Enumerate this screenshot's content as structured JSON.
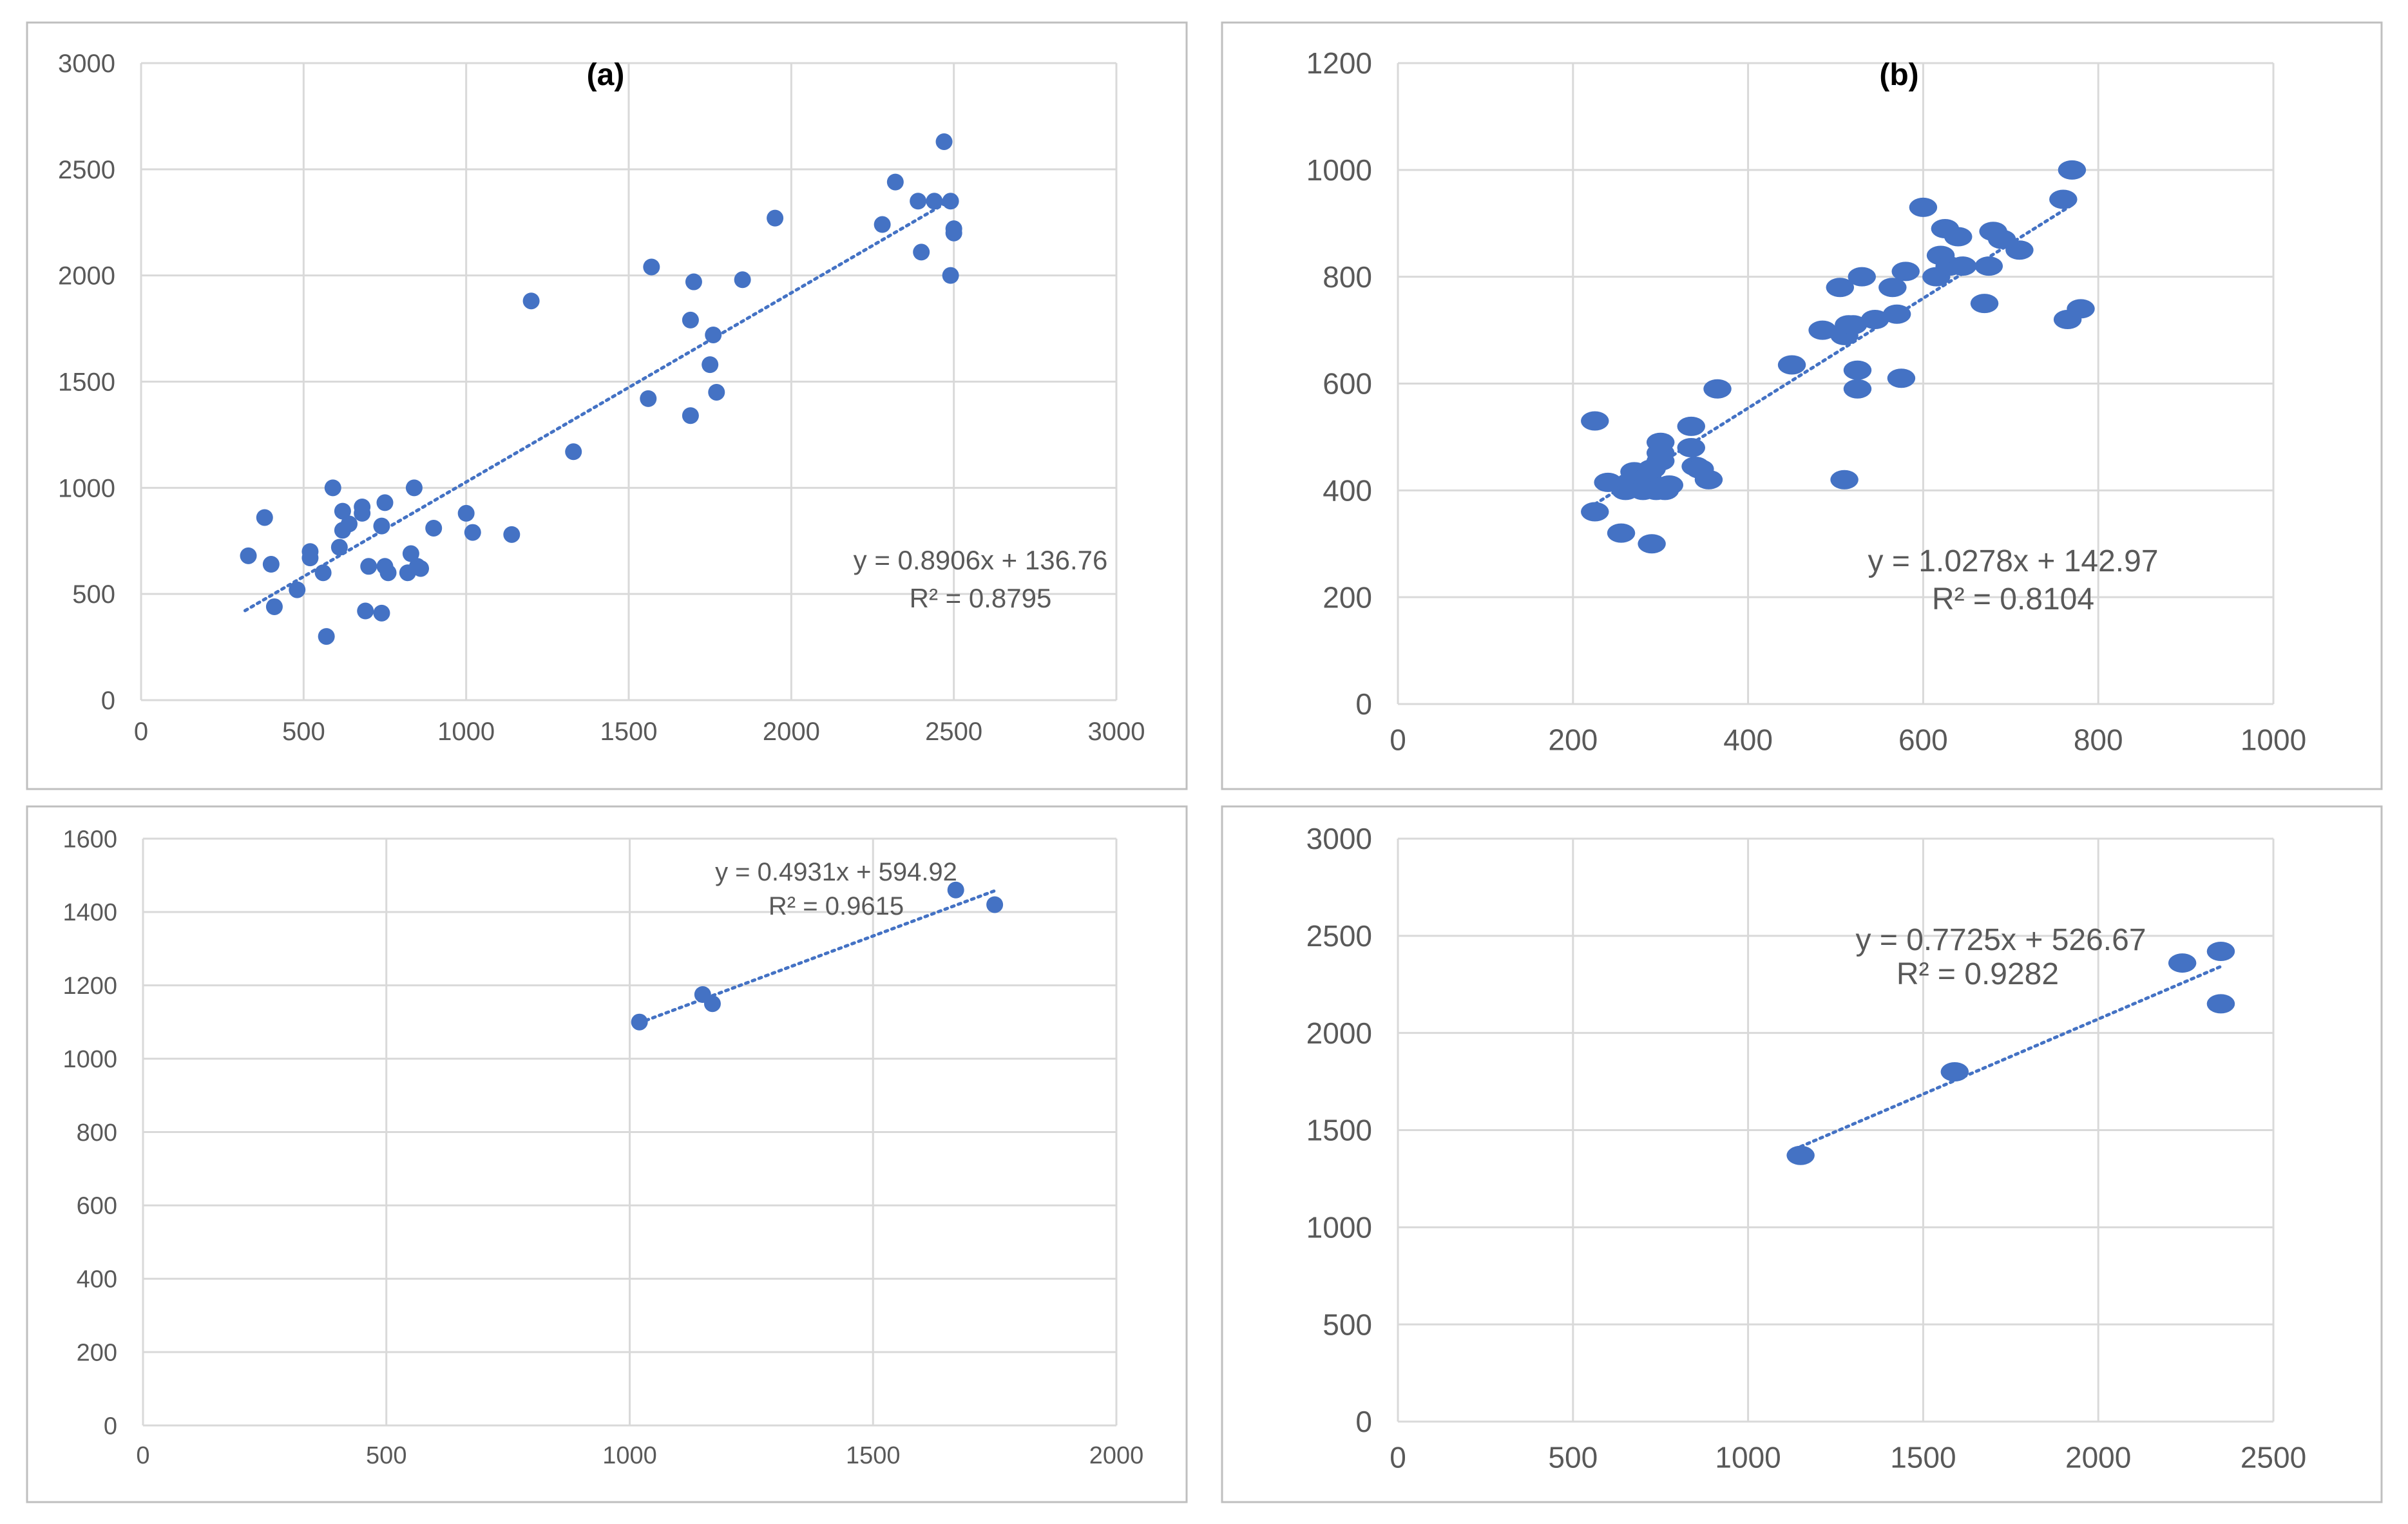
{
  "colors": {
    "marker": "#4472C4",
    "grid": "#d9d9d9",
    "axis_text": "#595959",
    "frame": "#bfbfbf",
    "trendline": "#4472C4"
  },
  "chart_data": [
    {
      "type": "scatter",
      "title": "(a)",
      "xlim": [
        0,
        3000
      ],
      "ylim": [
        0,
        3000
      ],
      "xticks": [
        "0",
        "500",
        "1000",
        "1500",
        "2000",
        "2500",
        "3000"
      ],
      "yticks": [
        "0",
        "500",
        "1000",
        "1500",
        "2000",
        "2500",
        "3000"
      ],
      "xtick_values": [
        0,
        500,
        1000,
        1500,
        2000,
        2500,
        3000
      ],
      "ytick_values": [
        0,
        500,
        1000,
        1500,
        2000,
        2500,
        3000
      ],
      "series": [
        {
          "name": "points",
          "x": [
            330,
            380,
            400,
            410,
            480,
            520,
            520,
            560,
            570,
            590,
            610,
            620,
            620,
            640,
            680,
            680,
            690,
            700,
            740,
            740,
            750,
            750,
            760,
            820,
            830,
            840,
            850,
            860,
            900,
            1000,
            1020,
            1140,
            1200,
            1330,
            1560,
            1570,
            1690,
            1690,
            1700,
            1750,
            1760,
            1770,
            1850,
            1950,
            2280,
            2320,
            2390,
            2400,
            2440,
            2470,
            2490,
            2490,
            2500,
            2500
          ],
          "y": [
            680,
            860,
            640,
            440,
            520,
            700,
            670,
            600,
            300,
            1000,
            720,
            800,
            890,
            830,
            880,
            910,
            420,
            630,
            410,
            820,
            930,
            630,
            600,
            600,
            690,
            1000,
            630,
            620,
            810,
            880,
            790,
            780,
            1880,
            1170,
            1420,
            2040,
            1340,
            1790,
            1970,
            1580,
            1720,
            1450,
            1980,
            2270,
            2240,
            2440,
            2350,
            2110,
            2350,
            2630,
            2000,
            2350,
            2220,
            2200
          ]
        }
      ],
      "trendline": {
        "slope": 0.8906,
        "intercept": 136.76,
        "x_range": [
          320,
          2500
        ]
      },
      "equation": "y = 0.8906x + 136.76",
      "r2": "R² = 0.8795",
      "xlabel": "",
      "ylabel": ""
    },
    {
      "type": "scatter",
      "title": "(b)",
      "xlim": [
        0,
        1000
      ],
      "ylim": [
        0,
        1200
      ],
      "xticks": [
        "0",
        "200",
        "400",
        "600",
        "800",
        "1000"
      ],
      "yticks": [
        "0",
        "200",
        "400",
        "600",
        "800",
        "1000",
        "1200"
      ],
      "xtick_values": [
        0,
        200,
        400,
        600,
        800,
        1000
      ],
      "ytick_values": [
        0,
        200,
        400,
        600,
        800,
        1000,
        1200
      ],
      "series": [
        {
          "name": "points",
          "x": [
            225,
            225,
            240,
            255,
            260,
            265,
            270,
            280,
            285,
            290,
            290,
            295,
            300,
            300,
            300,
            305,
            310,
            335,
            335,
            340,
            345,
            355,
            365,
            450,
            485,
            505,
            510,
            510,
            515,
            520,
            525,
            525,
            530,
            545,
            565,
            570,
            575,
            580,
            600,
            615,
            620,
            625,
            630,
            640,
            645,
            670,
            675,
            680,
            690,
            710,
            760,
            765,
            770,
            780
          ],
          "y": [
            530,
            360,
            415,
            320,
            400,
            415,
            435,
            400,
            425,
            300,
            440,
            400,
            470,
            455,
            490,
            400,
            410,
            480,
            520,
            445,
            440,
            420,
            590,
            635,
            700,
            780,
            690,
            420,
            710,
            710,
            590,
            625,
            800,
            720,
            780,
            730,
            610,
            810,
            930,
            800,
            840,
            890,
            820,
            875,
            820,
            750,
            820,
            885,
            870,
            850,
            945,
            720,
            1000,
            740
          ]
        }
      ],
      "trendline": {
        "slope": 1.0278,
        "intercept": 142.97,
        "x_range": [
          225,
          770
        ]
      },
      "equation": "y = 1.0278x + 142.97",
      "r2": "R² = 0.8104",
      "xlabel": "",
      "ylabel": ""
    },
    {
      "type": "scatter",
      "title": "",
      "xlim": [
        0,
        2000
      ],
      "ylim": [
        0,
        1600
      ],
      "xticks": [
        "0",
        "500",
        "1000",
        "1500",
        "2000"
      ],
      "yticks": [
        "0",
        "200",
        "400",
        "600",
        "800",
        "1000",
        "1200",
        "1400",
        "1600"
      ],
      "xtick_values": [
        0,
        500,
        1000,
        1500,
        2000
      ],
      "ytick_values": [
        0,
        200,
        400,
        600,
        800,
        1000,
        1200,
        1400,
        1600
      ],
      "series": [
        {
          "name": "points",
          "x": [
            1020,
            1150,
            1170,
            1670,
            1750
          ],
          "y": [
            1100,
            1175,
            1150,
            1460,
            1420
          ]
        }
      ],
      "trendline": {
        "slope": 0.4931,
        "intercept": 594.92,
        "x_range": [
          1020,
          1750
        ]
      },
      "equation": "y = 0.4931x + 594.92",
      "r2": "R² = 0.9615",
      "xlabel": "",
      "ylabel": ""
    },
    {
      "type": "scatter",
      "title": "",
      "xlim": [
        0,
        2500
      ],
      "ylim": [
        0,
        3000
      ],
      "xticks": [
        "0",
        "500",
        "1000",
        "1500",
        "2000",
        "2500"
      ],
      "yticks": [
        "0",
        "500",
        "1000",
        "1500",
        "2000",
        "2500",
        "3000"
      ],
      "xtick_values": [
        0,
        500,
        1000,
        1500,
        2000,
        2500
      ],
      "ytick_values": [
        0,
        500,
        1000,
        1500,
        2000,
        2500,
        3000
      ],
      "series": [
        {
          "name": "points",
          "x": [
            1150,
            1590,
            2240,
            2350,
            2350
          ],
          "y": [
            1370,
            1800,
            2360,
            2420,
            2150
          ]
        }
      ],
      "trendline": {
        "slope": 0.7725,
        "intercept": 526.67,
        "x_range": [
          1150,
          2350
        ]
      },
      "equation": "y = 0.7725x + 526.67",
      "r2": "R² = 0.9282",
      "xlabel": "",
      "ylabel": ""
    }
  ]
}
